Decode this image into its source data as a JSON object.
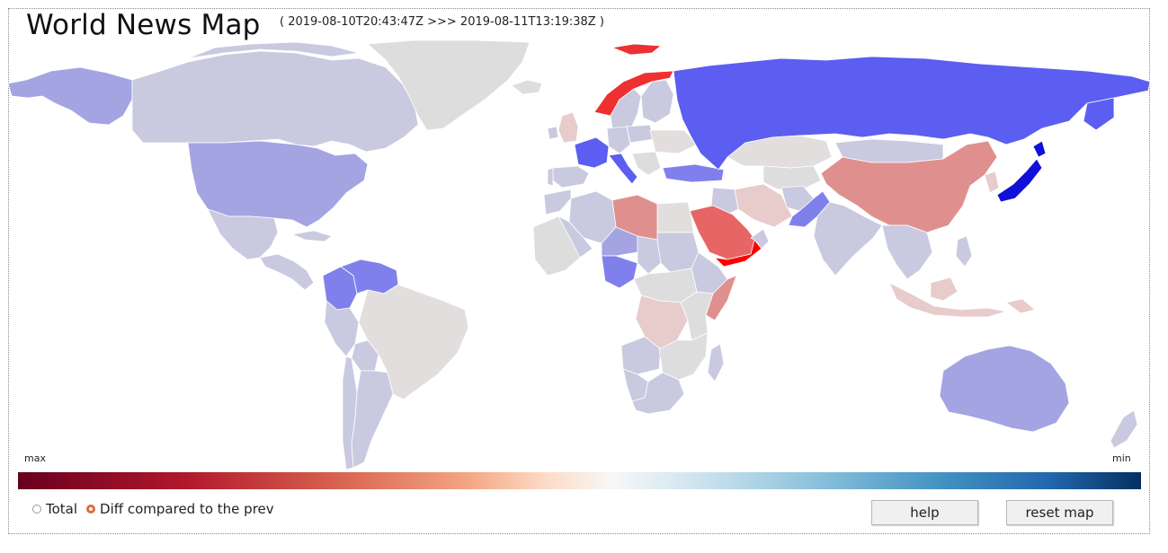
{
  "header": {
    "title": "World News Map",
    "time_range": "( 2019-08-10T20:43:47Z >>> 2019-08-11T13:19:38Z )"
  },
  "scale": {
    "max_label": "max",
    "min_label": "min"
  },
  "modes": {
    "total_label": "Total",
    "diff_label": "Diff compared to the prev",
    "selected": "diff"
  },
  "buttons": {
    "help_label": "help",
    "reset_label": "reset map"
  },
  "colors": {
    "neutral": "#dddddd",
    "light_neutral": "#e3dede",
    "pale_blue": "#c9c9e0",
    "light_blue": "#a4a4e3",
    "mid_blue": "#8080ec",
    "strong_blue": "#5b5ef0",
    "deep_blue": "#1010d8",
    "pale_red": "#e8cbcb",
    "light_red": "#e08f8f",
    "mid_red": "#e76565",
    "strong_red": "#ee3030",
    "pure_red": "#ff0000"
  },
  "countries": [
    {
      "name": "Canada",
      "shade": "pale_blue"
    },
    {
      "name": "Alaska",
      "shade": "light_blue"
    },
    {
      "name": "Greenland",
      "shade": "neutral"
    },
    {
      "name": "United States",
      "shade": "light_blue"
    },
    {
      "name": "Mexico",
      "shade": "pale_blue"
    },
    {
      "name": "Central America",
      "shade": "pale_blue"
    },
    {
      "name": "Cuba",
      "shade": "pale_blue"
    },
    {
      "name": "Venezuela",
      "shade": "mid_blue"
    },
    {
      "name": "Colombia",
      "shade": "mid_blue"
    },
    {
      "name": "Brazil",
      "shade": "light_neutral"
    },
    {
      "name": "Peru",
      "shade": "pale_blue"
    },
    {
      "name": "Bolivia",
      "shade": "pale_blue"
    },
    {
      "name": "Argentina",
      "shade": "pale_blue"
    },
    {
      "name": "Chile",
      "shade": "pale_blue"
    },
    {
      "name": "Iceland",
      "shade": "neutral"
    },
    {
      "name": "Norway",
      "shade": "strong_red"
    },
    {
      "name": "Svalbard",
      "shade": "strong_red"
    },
    {
      "name": "Sweden",
      "shade": "pale_blue"
    },
    {
      "name": "Finland",
      "shade": "pale_blue"
    },
    {
      "name": "United Kingdom",
      "shade": "pale_red"
    },
    {
      "name": "Ireland",
      "shade": "pale_blue"
    },
    {
      "name": "France",
      "shade": "strong_blue"
    },
    {
      "name": "Spain",
      "shade": "pale_blue"
    },
    {
      "name": "Portugal",
      "shade": "pale_blue"
    },
    {
      "name": "Italy",
      "shade": "strong_blue"
    },
    {
      "name": "Germany",
      "shade": "pale_blue"
    },
    {
      "name": "Poland",
      "shade": "pale_blue"
    },
    {
      "name": "Ukraine",
      "shade": "light_neutral"
    },
    {
      "name": "Turkey",
      "shade": "mid_blue"
    },
    {
      "name": "Russia",
      "shade": "strong_blue"
    },
    {
      "name": "Kazakhstan",
      "shade": "light_neutral"
    },
    {
      "name": "Mongolia",
      "shade": "pale_blue"
    },
    {
      "name": "China",
      "shade": "light_red"
    },
    {
      "name": "Japan",
      "shade": "deep_blue"
    },
    {
      "name": "Korea",
      "shade": "pale_red"
    },
    {
      "name": "India",
      "shade": "pale_blue"
    },
    {
      "name": "Pakistan",
      "shade": "mid_blue"
    },
    {
      "name": "Afghanistan",
      "shade": "pale_blue"
    },
    {
      "name": "Iran",
      "shade": "pale_red"
    },
    {
      "name": "Iraq",
      "shade": "pale_blue"
    },
    {
      "name": "Saudi Arabia",
      "shade": "mid_red"
    },
    {
      "name": "Yemen",
      "shade": "pure_red"
    },
    {
      "name": "Oman",
      "shade": "pale_blue"
    },
    {
      "name": "Egypt",
      "shade": "light_neutral"
    },
    {
      "name": "Libya",
      "shade": "light_red"
    },
    {
      "name": "Algeria",
      "shade": "pale_blue"
    },
    {
      "name": "Morocco",
      "shade": "pale_blue"
    },
    {
      "name": "Mali",
      "shade": "pale_blue"
    },
    {
      "name": "Niger",
      "shade": "light_blue"
    },
    {
      "name": "Chad",
      "shade": "pale_blue"
    },
    {
      "name": "Sudan",
      "shade": "pale_blue"
    },
    {
      "name": "Ethiopia",
      "shade": "pale_blue"
    },
    {
      "name": "Somalia",
      "shade": "light_red"
    },
    {
      "name": "Nigeria",
      "shade": "mid_blue"
    },
    {
      "name": "Congo DR",
      "shade": "pale_red"
    },
    {
      "name": "Angola",
      "shade": "pale_blue"
    },
    {
      "name": "Namibia",
      "shade": "pale_blue"
    },
    {
      "name": "South Africa",
      "shade": "pale_blue"
    },
    {
      "name": "Madagascar",
      "shade": "pale_blue"
    },
    {
      "name": "Southeast Asia",
      "shade": "pale_blue"
    },
    {
      "name": "Philippines",
      "shade": "pale_blue"
    },
    {
      "name": "Indonesia",
      "shade": "pale_red"
    },
    {
      "name": "Papua New Guinea",
      "shade": "pale_red"
    },
    {
      "name": "Australia",
      "shade": "light_blue"
    },
    {
      "name": "New Zealand",
      "shade": "pale_blue"
    }
  ]
}
